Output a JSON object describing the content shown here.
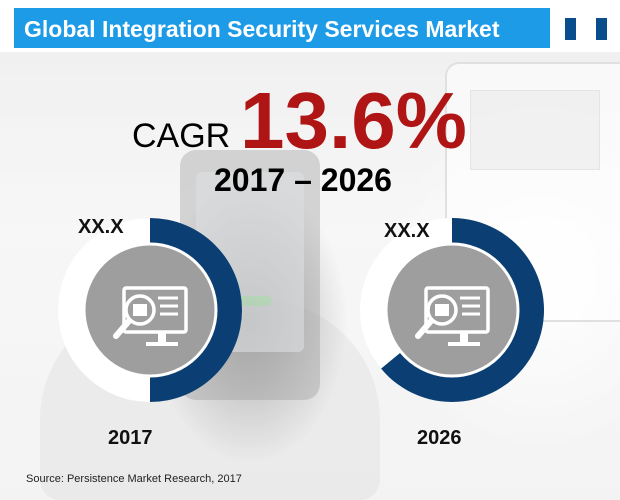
{
  "title": "Global Integration Security Services Market",
  "cagr": {
    "label": "CAGR",
    "value": "13.6%",
    "period": "2017 – 2026"
  },
  "chart_data": {
    "type": "pie",
    "charts": [
      {
        "category": "2017",
        "value_label": "XX.X",
        "filled_fraction": 0.5
      },
      {
        "category": "2026",
        "value_label": "XX.X",
        "filled_fraction": 0.64
      }
    ]
  },
  "source": "Source: Persistence Market Research, 2017",
  "colors": {
    "title_bar": "#1e9be6",
    "title_block": "#0a4d8c",
    "donut_filled": "#0b3f73",
    "donut_empty": "#ffffff",
    "inner_circle": "#9e9e9e",
    "cagr_value": "#b01515"
  },
  "icons": {
    "center": "monitor-magnifier-icon"
  }
}
